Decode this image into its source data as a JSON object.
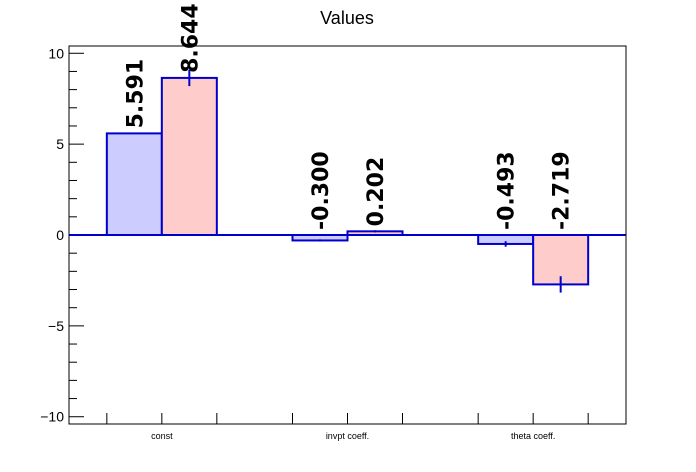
{
  "chart_data": {
    "type": "bar",
    "title": "Values",
    "categories": [
      "const",
      "invpt coeff.",
      "theta coeff."
    ],
    "series": [
      {
        "values": [
          5.591,
          -0.3,
          -0.493
        ],
        "labels": [
          "5.591",
          "-0.300",
          "-0.493"
        ],
        "errors": [
          0.0,
          0.06,
          0.15
        ],
        "fill": "#ccccff",
        "stroke": "#0000cc"
      },
      {
        "values": [
          8.644,
          0.202,
          -2.719
        ],
        "labels": [
          "8.644",
          "0.202",
          "-2.719"
        ],
        "errors": [
          0.45,
          0.06,
          0.45
        ],
        "fill": "#ffcccc",
        "stroke": "#0000cc"
      }
    ],
    "ylim": [
      -10.4,
      10.4
    ],
    "yticks": [
      -10,
      -5,
      0,
      5,
      10
    ],
    "ytick_labels": [
      "−10",
      "−5",
      "0",
      "5",
      "10"
    ],
    "xlabel": "",
    "ylabel": "",
    "grid": false,
    "legend": "none",
    "axis_color": "#000000",
    "zero_line_color": "#0000cc"
  }
}
